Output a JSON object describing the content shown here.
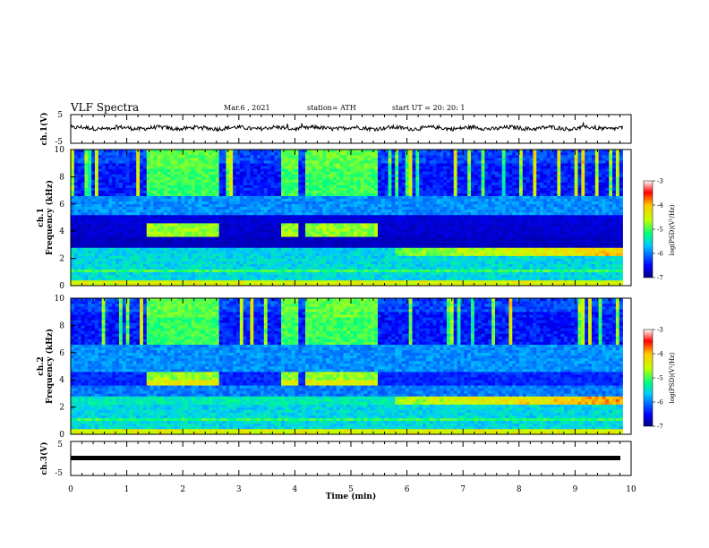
{
  "header": {
    "title": "VLF Spectra",
    "date": "Mar.6 , 2021",
    "station": "station= ATH",
    "start_ut": "start UT = 20: 20: 1"
  },
  "chart_data": [
    {
      "type": "line",
      "panel": "ch1-voltage",
      "ylabel": "ch.1(V)",
      "ylim": [
        -5,
        5
      ],
      "yticks": [
        "5",
        "-5"
      ],
      "xlim": [
        0,
        10
      ],
      "description_values": {
        "baseline": 0.3
      }
    },
    {
      "type": "heatmap",
      "panel": "ch1-spectrogram",
      "ylabel": "ch.1\nFrequency (kHz)",
      "ylabel_lines": [
        "ch.1",
        "Frequency (kHz)"
      ],
      "ylim": [
        0,
        10
      ],
      "yticks": [
        "0",
        "2",
        "4",
        "6",
        "8",
        "10"
      ],
      "xlim": [
        0,
        10
      ],
      "data_end_min": 9.85,
      "bright_intervals_min": [
        [
          1.37,
          2.65
        ],
        [
          3.75,
          4.05
        ],
        [
          4.2,
          5.45
        ]
      ],
      "colorbar": {
        "label": "log(PSD)(V²/Hz)",
        "ticks": [
          "-3",
          "-4",
          "-5",
          "-6",
          "-7"
        ],
        "range": [
          -7,
          -3
        ]
      }
    },
    {
      "type": "heatmap",
      "panel": "ch2-spectrogram",
      "ylabel": "ch.2\nFrequency (kHz)",
      "ylabel_lines": [
        "ch.2",
        "Frequency (kHz)"
      ],
      "ylim": [
        0,
        10
      ],
      "yticks": [
        "0",
        "2",
        "4",
        "6",
        "8",
        "10"
      ],
      "xlim": [
        0,
        10
      ],
      "data_end_min": 9.85,
      "bright_intervals_min": [
        [
          1.37,
          2.65
        ],
        [
          3.75,
          4.05
        ],
        [
          4.2,
          5.45
        ]
      ],
      "colorbar": {
        "label": "log(PSD)(V²/Hz)",
        "ticks": [
          "-3",
          "-4",
          "-5",
          "-6",
          "-7"
        ],
        "range": [
          -7,
          -3
        ]
      }
    },
    {
      "type": "line",
      "panel": "ch3-voltage",
      "ylabel": "ch.3(V)",
      "ylim": [
        -5,
        5
      ],
      "yticks": [
        "5",
        "-5"
      ],
      "xlim": [
        0,
        10
      ],
      "description_values": {
        "baseline": 0
      }
    }
  ],
  "xaxis": {
    "label": "Time (min)",
    "ticks": [
      "0",
      "1",
      "2",
      "3",
      "4",
      "5",
      "6",
      "7",
      "8",
      "9",
      "10"
    ]
  }
}
